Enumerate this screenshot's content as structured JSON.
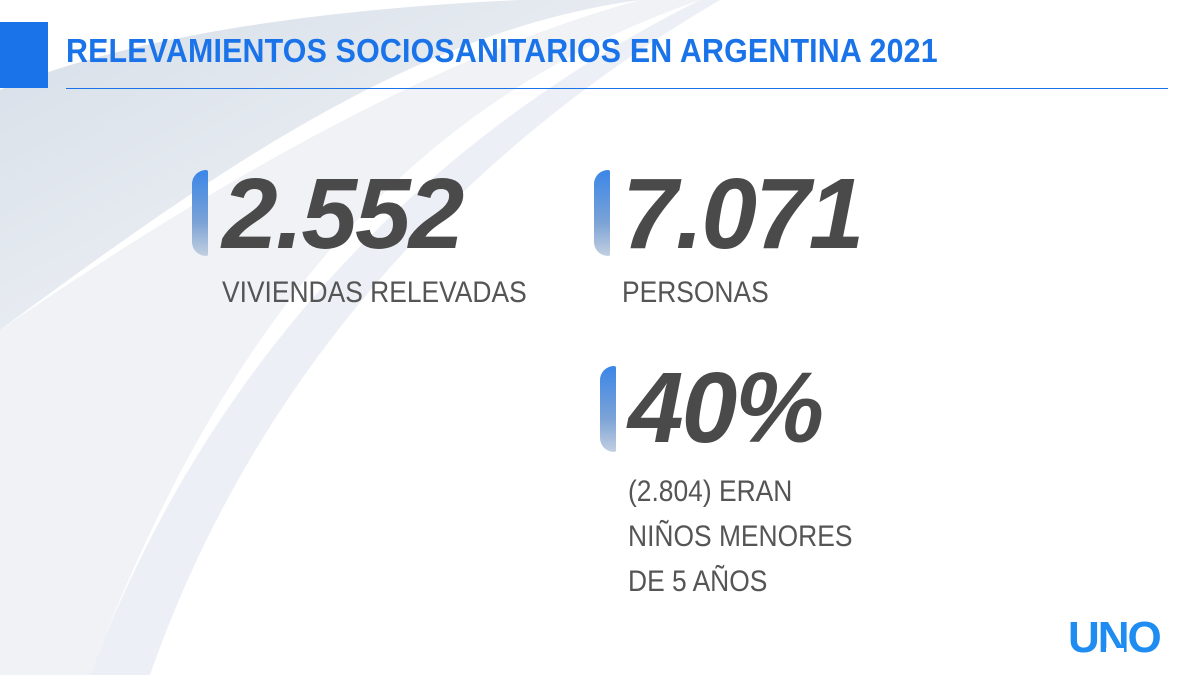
{
  "header": {
    "title": "RELEVAMIENTOS SOCIOSANITARIOS EN ARGENTINA 2021"
  },
  "stats": [
    {
      "value": "2.552",
      "label": "VIVIENDAS RELEVADAS"
    },
    {
      "value": "7.071",
      "label": "PERSONAS"
    },
    {
      "value": "40%",
      "label_lines": [
        "(2.804) ERAN",
        "NIÑOS MENORES",
        "DE 5 AÑOS"
      ]
    }
  ],
  "brand": {
    "logo_text": "UNO"
  },
  "colors": {
    "accent": "#1a73e8",
    "value_text": "#4a4a4a",
    "label_text": "#555555"
  }
}
